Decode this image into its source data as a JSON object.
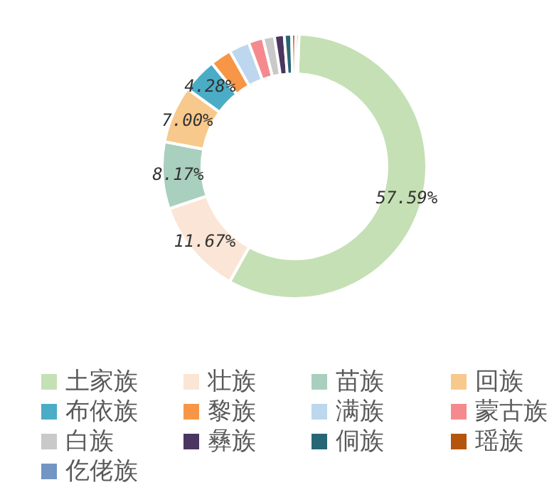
{
  "chart_data": {
    "type": "donut",
    "categories": [
      "土家族",
      "壮族",
      "苗族",
      "回族",
      "布依族",
      "黎族",
      "满族",
      "蒙古族",
      "白族",
      "彝族",
      "侗族",
      "瑶族",
      "仡佬族"
    ],
    "values": [
      57.59,
      11.67,
      8.17,
      7.0,
      4.28,
      2.6,
      2.5,
      1.8,
      1.4,
      1.2,
      0.9,
      0.5,
      0.39
    ],
    "colors": [
      "#c5e0b4",
      "#fbe5d6",
      "#a9cfbe",
      "#f8c98c",
      "#4bacc6",
      "#f79646",
      "#bdd7ee",
      "#f58a8e",
      "#c9c9c9",
      "#4a3660",
      "#276675",
      "#b5540e",
      "#7295c4"
    ],
    "value_labels": [
      "57.59%",
      "11.67%",
      "8.17%",
      "7.00%",
      "4.28%",
      null,
      null,
      null,
      null,
      null,
      null,
      null,
      null
    ],
    "legend": "bottom"
  }
}
